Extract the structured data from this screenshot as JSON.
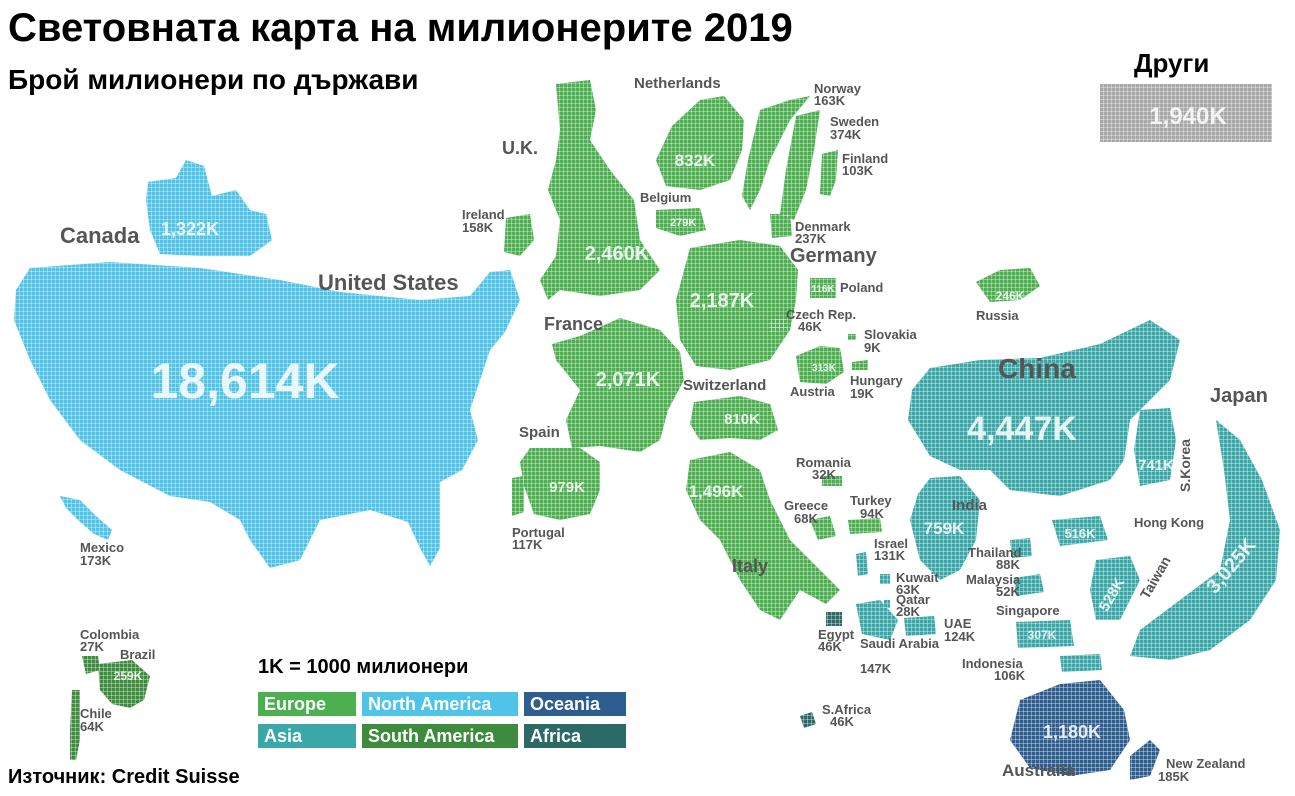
{
  "title": "Световната карта на милионерите 2019",
  "subtitle": "Брой милионери по държави",
  "source": "Източник: Credit Suisse",
  "scale_note": "1K = 1000 милионери",
  "other": {
    "label": "Други",
    "value": "1,940K"
  },
  "colors": {
    "europe": "#4caf50",
    "north_america": "#4fc3e8",
    "oceania": "#2e5d8f",
    "asia": "#3aa8a8",
    "south_america": "#3d8b3d",
    "africa": "#2b6a66",
    "other": "#a8a8a8",
    "label_text": "#555555"
  },
  "legend": [
    {
      "label": "Europe",
      "color": "#4caf50"
    },
    {
      "label": "North America",
      "color": "#4fc3e8"
    },
    {
      "label": "Oceania",
      "color": "#2e5d8f"
    },
    {
      "label": "Asia",
      "color": "#3aa8a8"
    },
    {
      "label": "South America",
      "color": "#3d8b3d"
    },
    {
      "label": "Africa",
      "color": "#2b6a66"
    }
  ],
  "countries": [
    {
      "name": "United States",
      "value": "18,614K",
      "region": "north_america"
    },
    {
      "name": "Canada",
      "value": "1,322K",
      "region": "north_america"
    },
    {
      "name": "Mexico",
      "value": "173K",
      "region": "north_america"
    },
    {
      "name": "Colombia",
      "value": "27K",
      "region": "south_america"
    },
    {
      "name": "Brazil",
      "value": "259K",
      "region": "south_america"
    },
    {
      "name": "Chile",
      "value": "64K",
      "region": "south_america"
    },
    {
      "name": "U.K.",
      "value": "2,460K",
      "region": "europe"
    },
    {
      "name": "Ireland",
      "value": "158K",
      "region": "europe"
    },
    {
      "name": "Netherlands",
      "value": "832K",
      "region": "europe"
    },
    {
      "name": "Belgium",
      "value": "279K",
      "region": "europe"
    },
    {
      "name": "Norway",
      "value": "163K",
      "region": "europe"
    },
    {
      "name": "Sweden",
      "value": "374K",
      "region": "europe"
    },
    {
      "name": "Finland",
      "value": "103K",
      "region": "europe"
    },
    {
      "name": "Denmark",
      "value": "237K",
      "region": "europe"
    },
    {
      "name": "Germany",
      "value": "2,187K",
      "region": "europe"
    },
    {
      "name": "Poland",
      "value": "116K",
      "region": "europe"
    },
    {
      "name": "Czech Rep.",
      "value": "46K",
      "region": "europe"
    },
    {
      "name": "Slovakia",
      "value": "9K",
      "region": "europe"
    },
    {
      "name": "Austria",
      "value": "313K",
      "region": "europe"
    },
    {
      "name": "Hungary",
      "value": "19K",
      "region": "europe"
    },
    {
      "name": "France",
      "value": "2,071K",
      "region": "europe"
    },
    {
      "name": "Switzerland",
      "value": "810K",
      "region": "europe"
    },
    {
      "name": "Spain",
      "value": "979K",
      "region": "europe"
    },
    {
      "name": "Portugal",
      "value": "117K",
      "region": "europe"
    },
    {
      "name": "Italy",
      "value": "1,496K",
      "region": "europe"
    },
    {
      "name": "Romania",
      "value": "32K",
      "region": "europe"
    },
    {
      "name": "Greece",
      "value": "68K",
      "region": "europe"
    },
    {
      "name": "Turkey",
      "value": "94K",
      "region": "europe"
    },
    {
      "name": "Russia",
      "value": "246K",
      "region": "europe"
    },
    {
      "name": "Israel",
      "value": "131K",
      "region": "asia"
    },
    {
      "name": "Kuwait",
      "value": "63K",
      "region": "asia"
    },
    {
      "name": "Qatar",
      "value": "28K",
      "region": "asia"
    },
    {
      "name": "UAE",
      "value": "124K",
      "region": "asia"
    },
    {
      "name": "Saudi Arabia",
      "value": "147K",
      "region": "asia"
    },
    {
      "name": "Egypt",
      "value": "46K",
      "region": "africa"
    },
    {
      "name": "S.Africa",
      "value": "46K",
      "region": "africa"
    },
    {
      "name": "China",
      "value": "4,447K",
      "region": "asia"
    },
    {
      "name": "Japan",
      "value": "3,025K",
      "region": "asia"
    },
    {
      "name": "S.Korea",
      "value": "741K",
      "region": "asia"
    },
    {
      "name": "India",
      "value": "759K",
      "region": "asia"
    },
    {
      "name": "Hong Kong",
      "value": "516K",
      "region": "asia"
    },
    {
      "name": "Taiwan",
      "value": "528K",
      "region": "asia"
    },
    {
      "name": "Thailand",
      "value": "88K",
      "region": "asia"
    },
    {
      "name": "Malaysia",
      "value": "52K",
      "region": "asia"
    },
    {
      "name": "Singapore",
      "value": "307K",
      "region": "asia"
    },
    {
      "name": "Indonesia",
      "value": "106K",
      "region": "asia"
    },
    {
      "name": "Australia",
      "value": "1,180K",
      "region": "oceania"
    },
    {
      "name": "New Zealand",
      "value": "185K",
      "region": "oceania"
    }
  ]
}
